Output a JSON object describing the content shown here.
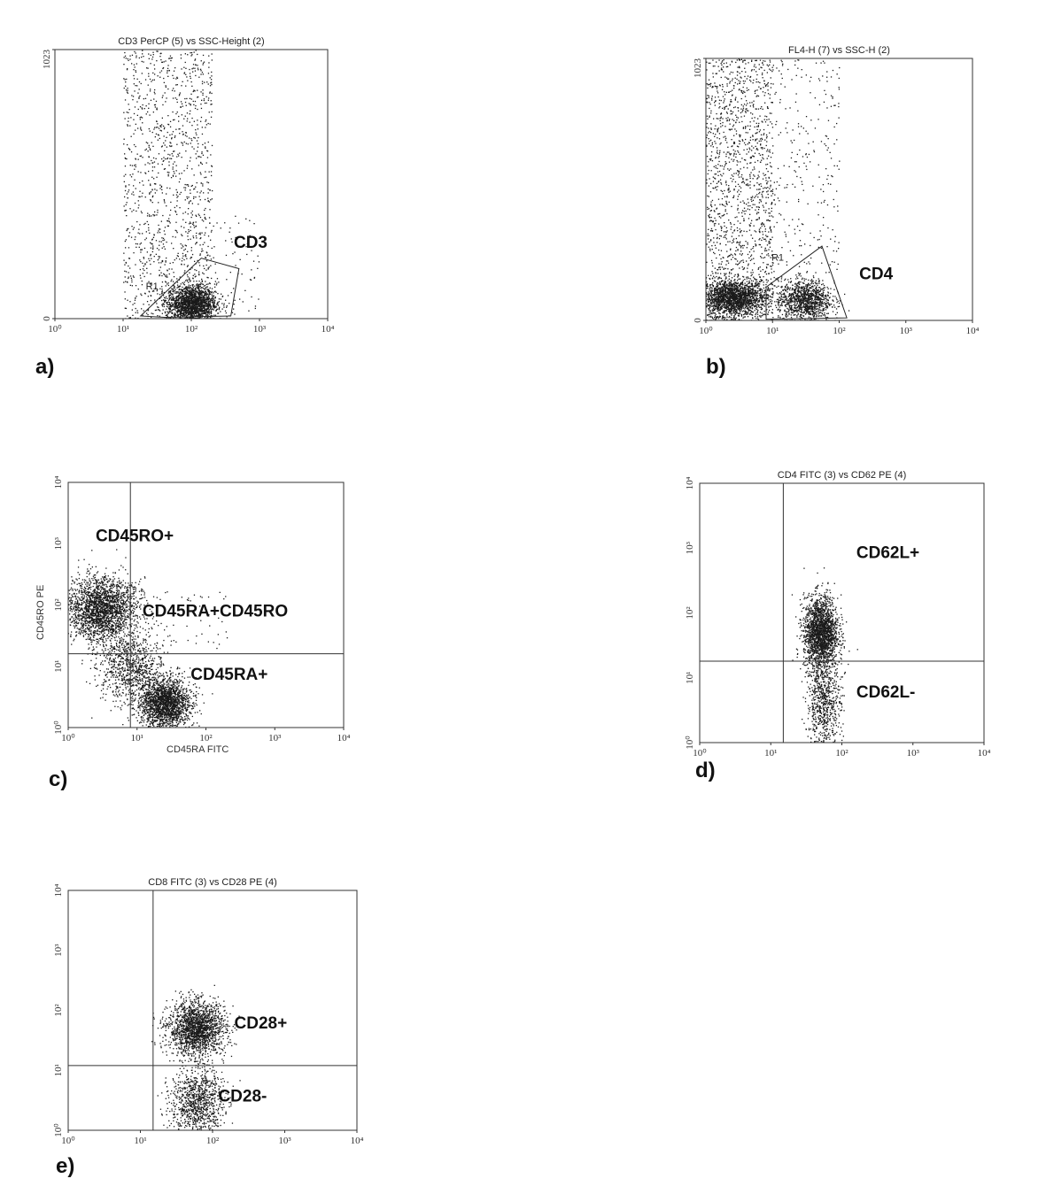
{
  "chart_data": [
    {
      "id": "a",
      "type": "scatter",
      "panel_label": "a)",
      "title": "CD3 PerCP (5) vs SSC-Height (2)",
      "xlabel": "",
      "ylabel": "",
      "x_scale": "log",
      "xlim": [
        1,
        10000
      ],
      "x_ticks": [
        "10⁰",
        "10¹",
        "10²",
        "10³",
        "10⁴"
      ],
      "y_scale": "linear",
      "ylim": [
        0,
        1023
      ],
      "y_ticks": [
        "0",
        "1023"
      ],
      "gate": {
        "label": "R1",
        "points": [
          [
            18,
            10
          ],
          [
            140,
            230
          ],
          [
            500,
            190
          ],
          [
            380,
            10
          ],
          [
            40,
            5
          ]
        ]
      },
      "annotations": [
        {
          "text": "CD3",
          "x": 420,
          "y": 270
        }
      ],
      "quadrant_lines": null,
      "clusters": [
        {
          "name": "",
          "x_range": [
            10,
            200
          ],
          "y_range": [
            0,
            1023
          ],
          "count": 1300,
          "spread": "uniform"
        },
        {
          "name": "",
          "x_center": 100,
          "y_center": 60,
          "sx": 0.18,
          "sy": 35,
          "count": 1700,
          "spread": "gauss"
        },
        {
          "name": "",
          "x_range": [
            100,
            1000
          ],
          "y_range": [
            0,
            400
          ],
          "count": 90,
          "spread": "uniform"
        }
      ]
    },
    {
      "id": "b",
      "type": "scatter",
      "panel_label": "b)",
      "title": "FL4-H (7) vs SSC-H (2)",
      "xlabel": "",
      "ylabel": "",
      "x_scale": "log",
      "xlim": [
        1,
        10000
      ],
      "x_ticks": [
        "10⁰",
        "10¹",
        "10²",
        "10³",
        "10⁴"
      ],
      "y_scale": "linear",
      "ylim": [
        0,
        1023
      ],
      "y_ticks": [
        "0",
        "1023"
      ],
      "gate": {
        "label": "R1",
        "points": [
          [
            8,
            130
          ],
          [
            55,
            290
          ],
          [
            130,
            10
          ],
          [
            8,
            5
          ]
        ]
      },
      "annotations": [
        {
          "text": "CD4",
          "x": 200,
          "y": 160
        }
      ],
      "quadrant_lines": null,
      "clusters": [
        {
          "name": "",
          "x_range": [
            1,
            10
          ],
          "y_range": [
            0,
            1023
          ],
          "count": 1500,
          "spread": "uniform"
        },
        {
          "name": "",
          "x_center": 2.5,
          "y_center": 90,
          "sx": 0.25,
          "sy": 35,
          "count": 1900,
          "spread": "gauss"
        },
        {
          "name": "",
          "x_center": 30,
          "y_center": 80,
          "sx": 0.2,
          "sy": 40,
          "count": 1100,
          "spread": "gauss"
        },
        {
          "name": "",
          "x_range": [
            10,
            100
          ],
          "y_range": [
            100,
            1023
          ],
          "count": 280,
          "spread": "uniform"
        }
      ]
    },
    {
      "id": "c",
      "type": "scatter",
      "panel_label": "c)",
      "title": "",
      "xlabel": "CD45RA FITC",
      "ylabel": "CD45RO PE",
      "x_scale": "log",
      "xlim": [
        1,
        10000
      ],
      "x_ticks": [
        "10⁰",
        "10¹",
        "10²",
        "10³",
        "10⁴"
      ],
      "y_scale": "log",
      "ylim": [
        1,
        10000
      ],
      "y_ticks": [
        "10⁰",
        "10¹",
        "10²",
        "10³",
        "10⁴"
      ],
      "gate": null,
      "annotations": [
        {
          "text": "CD45RO+",
          "x": 2.5,
          "y": 1100
        },
        {
          "text": "CD45RA+CD45RO",
          "x": 12,
          "y": 65
        },
        {
          "text": "CD45RA+",
          "x": 60,
          "y": 6
        }
      ],
      "quadrant_lines": {
        "x": 8,
        "y": 16
      },
      "clusters": [
        {
          "name": "",
          "x_center": 3,
          "y_center": 90,
          "sx": 0.25,
          "sy": 0.25,
          "count": 2200,
          "spread": "gauss"
        },
        {
          "name": "",
          "x_center": 25,
          "y_center": 2.5,
          "sx": 0.18,
          "sy": 0.2,
          "count": 2000,
          "spread": "gauss"
        },
        {
          "name": "",
          "x_center": 8,
          "y_center": 10,
          "sx": 0.25,
          "sy": 0.3,
          "count": 900,
          "spread": "gauss"
        },
        {
          "name": "",
          "x_range": [
            8,
            200
          ],
          "y_range": [
            20,
            200
          ],
          "count": 60,
          "spread": "uniform"
        }
      ]
    },
    {
      "id": "d",
      "type": "scatter",
      "panel_label": "d)",
      "title": "CD4 FITC (3) vs CD62 PE (4)",
      "xlabel": "",
      "ylabel": "",
      "x_scale": "log",
      "xlim": [
        1,
        10000
      ],
      "x_ticks": [
        "10⁰",
        "10¹",
        "10²",
        "10³",
        "10⁴"
      ],
      "y_scale": "log",
      "ylim": [
        1,
        10000
      ],
      "y_ticks": [
        "10⁰",
        "10¹",
        "10²",
        "10³",
        "10⁴"
      ],
      "gate": null,
      "annotations": [
        {
          "text": "CD62L+",
          "x": 160,
          "y": 700
        },
        {
          "text": "CD62L-",
          "x": 160,
          "y": 5
        }
      ],
      "quadrant_lines": {
        "x": 15,
        "y": 18
      },
      "clusters": [
        {
          "name": "",
          "x_center": 50,
          "y_center": 50,
          "sx": 0.12,
          "sy": 0.28,
          "count": 2000,
          "spread": "gauss"
        },
        {
          "name": "",
          "x_center": 55,
          "y_center": 4,
          "sx": 0.12,
          "sy": 0.35,
          "count": 700,
          "spread": "gauss"
        }
      ]
    },
    {
      "id": "e",
      "type": "scatter",
      "panel_label": "e)",
      "title": "CD8 FITC (3) vs CD28 PE (4)",
      "xlabel": "",
      "ylabel": "",
      "x_scale": "log",
      "xlim": [
        1,
        10000
      ],
      "x_ticks": [
        "10⁰",
        "10¹",
        "10²",
        "10³",
        "10⁴"
      ],
      "y_scale": "log",
      "ylim": [
        1,
        10000
      ],
      "y_ticks": [
        "10⁰",
        "10¹",
        "10²",
        "10³",
        "10⁴"
      ],
      "gate": null,
      "annotations": [
        {
          "text": "CD28+",
          "x": 200,
          "y": 50
        },
        {
          "text": "CD28-",
          "x": 120,
          "y": 3
        }
      ],
      "quadrant_lines": {
        "x": 15,
        "y": 12
      },
      "clusters": [
        {
          "name": "",
          "x_center": 60,
          "y_center": 50,
          "sx": 0.2,
          "sy": 0.22,
          "count": 1800,
          "spread": "gauss"
        },
        {
          "name": "",
          "x_center": 60,
          "y_center": 3,
          "sx": 0.18,
          "sy": 0.3,
          "count": 1000,
          "spread": "gauss"
        }
      ]
    }
  ]
}
